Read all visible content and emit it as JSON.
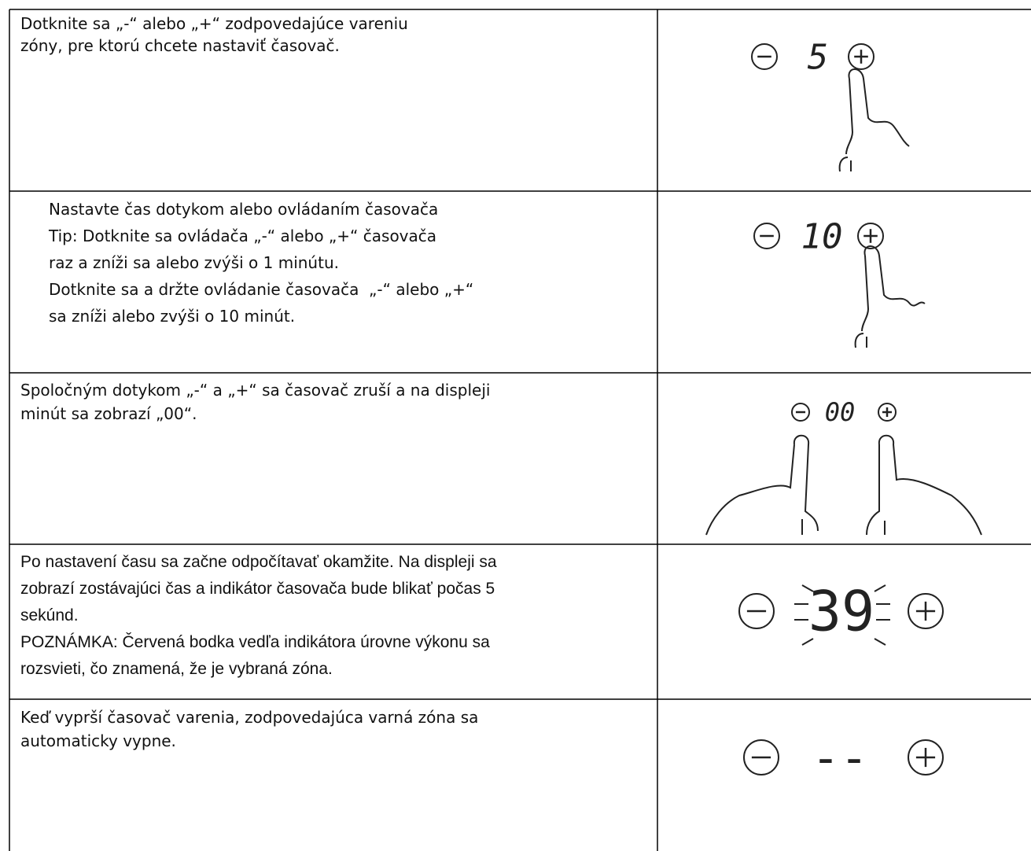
{
  "rows": [
    {
      "lines": [
        "Dotknite sa „-“ alebo „+“ zodpovedajúce vareniu",
        "zóny, pre ktorú chcete nastaviť časovač."
      ],
      "display": "5"
    },
    {
      "lines": [
        "Nastavte čas dotykom alebo ovládaním časovača",
        "Tip: Dotknite sa ovládača „-“ alebo „+“ časovača",
        "raz a zníži sa alebo zvýši o 1 minútu.",
        "Dotknite sa a držte ovládanie časovača  „-“ alebo „+“",
        "sa zníži alebo zvýši o 10 minút."
      ],
      "display": "10"
    },
    {
      "lines": [
        "Spoločným dotykom „-“ a „+“ sa časovač zruší a na displeji",
        "minút sa zobrazí „00“."
      ],
      "display": "00"
    },
    {
      "lines": [
        "Po nastavení času sa začne odpočítavať okamžite. Na displeji sa",
        "zobrazí zostávajúci čas a indikátor časovača bude blikať počas 5",
        "sekúnd.",
        "POZNÁMKA: Červená bodka vedľa indikátora úrovne výkonu sa",
        "rozsvieti, čo znamená, že je vybraná zóna."
      ],
      "display": "39"
    },
    {
      "lines": [
        "Keď vyprší časovač varenia, zodpovedajúca varná zóna sa",
        "automaticky vypne."
      ],
      "display": "--"
    }
  ]
}
